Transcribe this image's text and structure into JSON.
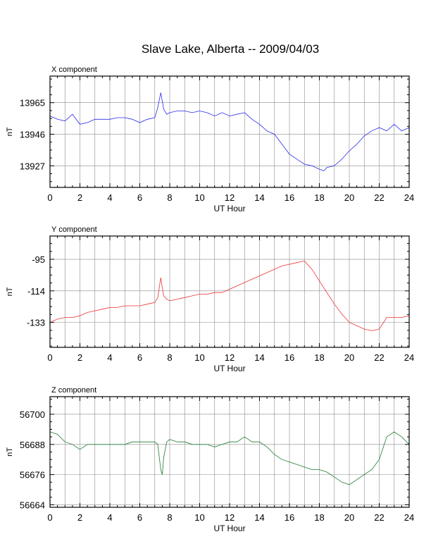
{
  "title": "Slave Lake, Alberta -- 2009/04/03",
  "chart_data": [
    {
      "type": "line",
      "label": "X component",
      "ylabel": "nT",
      "xlabel": "UT Hour",
      "color": "#2a2af0",
      "xlim": [
        0,
        24
      ],
      "ylim": [
        13914,
        13981
      ],
      "xticks": [
        "0",
        "2",
        "4",
        "6",
        "8",
        "10",
        "12",
        "14",
        "16",
        "18",
        "20",
        "22",
        "24"
      ],
      "yticks": [
        "13965",
        "13946",
        "13927"
      ],
      "ytick_values": [
        13965,
        13946,
        13927
      ],
      "grid": true,
      "x": [
        0,
        0.5,
        1,
        1.5,
        2,
        2.5,
        3,
        3.5,
        4,
        4.5,
        5,
        5.5,
        6,
        6.5,
        7,
        7.2,
        7.4,
        7.5,
        7.6,
        7.8,
        8,
        8.5,
        9,
        9.5,
        10,
        10.5,
        11,
        11.5,
        12,
        12.5,
        13,
        13.5,
        14,
        14.5,
        15,
        15.5,
        16,
        16.5,
        17,
        17.5,
        18,
        18.3,
        18.5,
        19,
        19.5,
        20,
        20.5,
        21,
        21.5,
        22,
        22.5,
        23,
        23.5,
        24
      ],
      "y": [
        13957,
        13955,
        13954,
        13958,
        13952,
        13953,
        13955,
        13955,
        13955,
        13956,
        13956,
        13955,
        13953,
        13955,
        13956,
        13962,
        13971,
        13966,
        13961,
        13958,
        13959,
        13960,
        13960,
        13959,
        13960,
        13959,
        13957,
        13959,
        13957,
        13958,
        13959,
        13955,
        13952,
        13948,
        13946,
        13940,
        13934,
        13931,
        13928,
        13927,
        13925,
        13924,
        13926,
        13927,
        13931,
        13936,
        13940,
        13945,
        13948,
        13950,
        13948,
        13952,
        13948,
        13950
      ]
    },
    {
      "type": "line",
      "label": "Y component",
      "ylabel": "nT",
      "xlabel": "UT Hour",
      "color": "#f03030",
      "xlim": [
        0,
        24
      ],
      "ylim": [
        -148,
        -81
      ],
      "xticks": [
        "0",
        "2",
        "4",
        "6",
        "8",
        "10",
        "12",
        "14",
        "16",
        "18",
        "20",
        "22",
        "24"
      ],
      "yticks": [
        "-95",
        "-114",
        "-133"
      ],
      "ytick_values": [
        -95,
        -114,
        -133
      ],
      "grid": true,
      "x": [
        0,
        0.5,
        1,
        1.5,
        2,
        2.5,
        3,
        3.5,
        4,
        4.5,
        5,
        5.5,
        6,
        6.5,
        7,
        7.2,
        7.4,
        7.5,
        7.6,
        7.8,
        8,
        8.5,
        9,
        9.5,
        10,
        10.5,
        11,
        11.5,
        12,
        12.5,
        13,
        13.5,
        14,
        14.5,
        15,
        15.5,
        16,
        16.5,
        17,
        17.5,
        18,
        18.5,
        19,
        19.5,
        20,
        20.5,
        21,
        21.5,
        22,
        22.5,
        23,
        23.5,
        24
      ],
      "y": [
        -133,
        -131,
        -130,
        -130,
        -129,
        -127,
        -126,
        -125,
        -124,
        -124,
        -123,
        -123,
        -123,
        -122,
        -121,
        -118,
        -106,
        -112,
        -117,
        -119,
        -120,
        -119,
        -118,
        -117,
        -116,
        -116,
        -115,
        -115,
        -113,
        -111,
        -109,
        -107,
        -105,
        -103,
        -101,
        -99,
        -98,
        -97,
        -96,
        -101,
        -108,
        -115,
        -122,
        -128,
        -133,
        -135,
        -137,
        -138,
        -137,
        -130,
        -130,
        -130,
        -129
      ]
    },
    {
      "type": "line",
      "label": "Z component",
      "ylabel": "nT",
      "xlabel": "UT Hour",
      "color": "#1e7a30",
      "xlim": [
        0,
        24
      ],
      "ylim": [
        56663,
        56707
      ],
      "xticks": [
        "0",
        "2",
        "4",
        "6",
        "8",
        "10",
        "12",
        "14",
        "16",
        "18",
        "20",
        "22",
        "24"
      ],
      "yticks": [
        "56700",
        "56688",
        "56676",
        "56664"
      ],
      "ytick_values": [
        56700,
        56688,
        56676,
        56664
      ],
      "grid": true,
      "x": [
        0,
        0.5,
        1,
        1.5,
        2,
        2.5,
        3,
        3.5,
        4,
        4.5,
        5,
        5.5,
        6,
        6.5,
        7,
        7.2,
        7.4,
        7.5,
        7.6,
        7.8,
        8,
        8.5,
        9,
        9.5,
        10,
        10.5,
        11,
        11.5,
        12,
        12.5,
        13,
        13.5,
        14,
        14.5,
        15,
        15.5,
        16,
        16.5,
        17,
        17.5,
        18,
        18.5,
        19,
        19.5,
        20,
        20.5,
        21,
        21.5,
        22,
        22.5,
        23,
        23.5,
        24
      ],
      "y": [
        56693,
        56692,
        56689,
        56688,
        56686,
        56688,
        56688,
        56688,
        56688,
        56688,
        56688,
        56689,
        56689,
        56689,
        56689,
        56688,
        56678,
        56676,
        56683,
        56689,
        56690,
        56689,
        56689,
        56688,
        56688,
        56688,
        56687,
        56688,
        56689,
        56689,
        56691,
        56689,
        56689,
        56687,
        56684,
        56682,
        56681,
        56680,
        56679,
        56678,
        56678,
        56677,
        56675,
        56673,
        56672,
        56674,
        56676,
        56678,
        56682,
        56691,
        56693,
        56691,
        56688
      ]
    }
  ]
}
